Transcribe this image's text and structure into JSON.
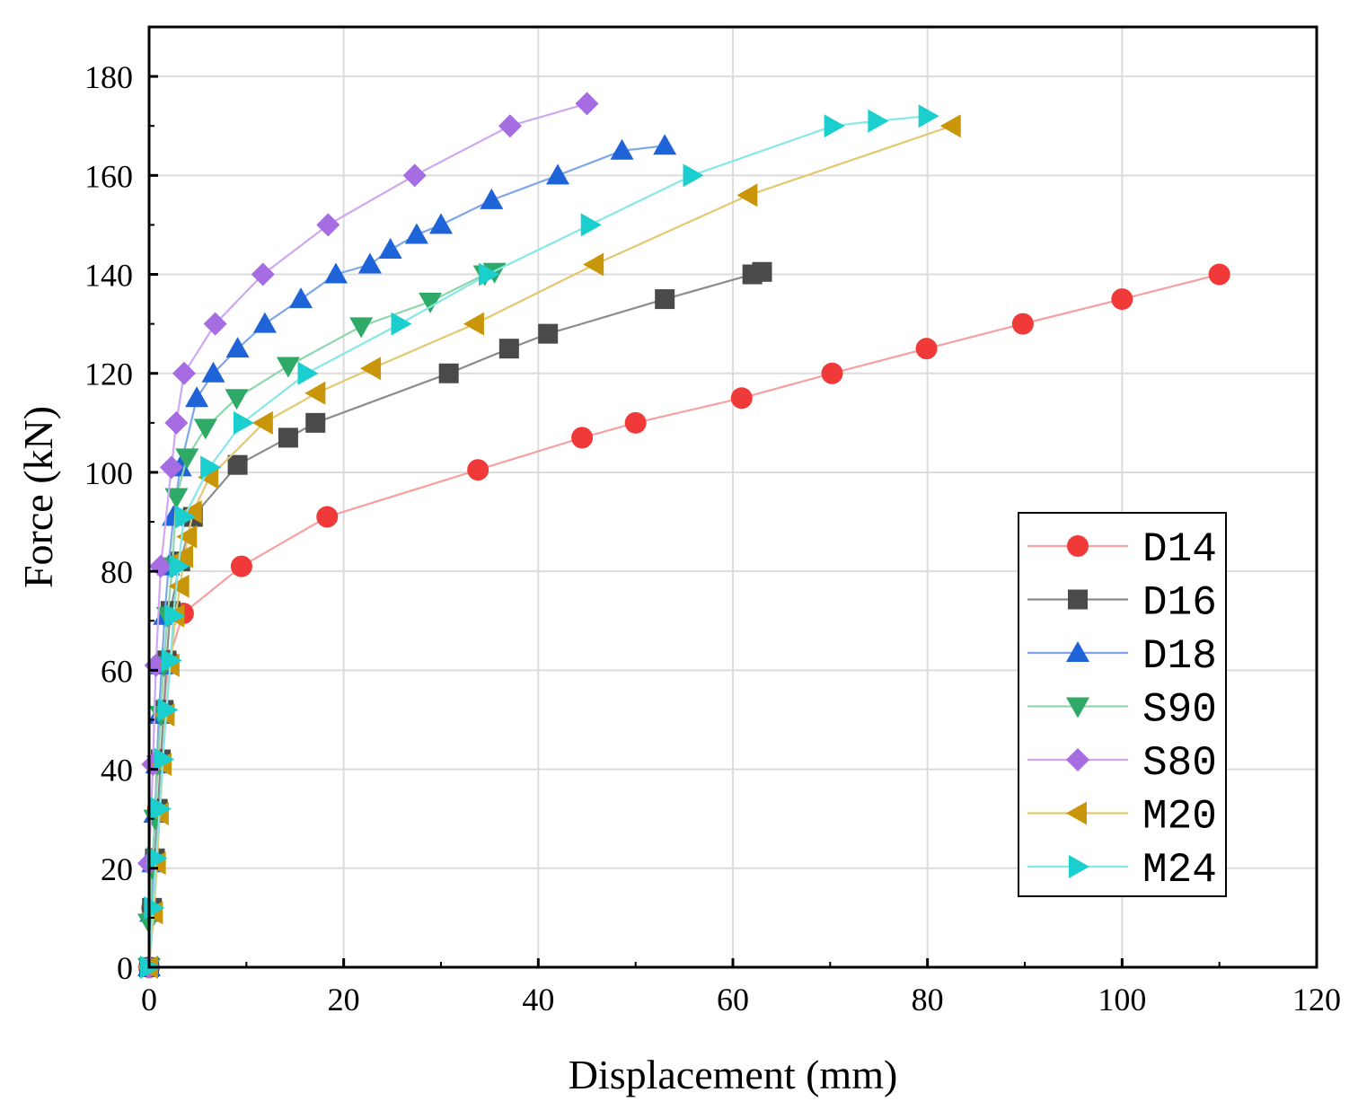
{
  "chart_data": {
    "type": "line",
    "xlabel": "Displacement (mm)",
    "ylabel": "Force (kN)",
    "xlim": [
      0,
      120
    ],
    "ylim": [
      0,
      190
    ],
    "xticks": [
      0,
      20,
      40,
      60,
      80,
      100,
      120
    ],
    "yticks": [
      0,
      20,
      40,
      60,
      80,
      100,
      120,
      140,
      160,
      180
    ],
    "grid": true,
    "legend_position": "bottom-right",
    "series": [
      {
        "name": "D14",
        "marker": "circle",
        "color": "#f03a3a",
        "line_color": "#f7a0a0",
        "points": [
          [
            0,
            0
          ],
          [
            0.3,
            12
          ],
          [
            0.6,
            22
          ],
          [
            0.9,
            32
          ],
          [
            1.2,
            42
          ],
          [
            1.5,
            52
          ],
          [
            2,
            62
          ],
          [
            3.5,
            71.5
          ],
          [
            9.5,
            81
          ],
          [
            18.3,
            91
          ],
          [
            33.8,
            100.5
          ],
          [
            44.5,
            107
          ],
          [
            50,
            110
          ],
          [
            60.9,
            115
          ],
          [
            70.2,
            120
          ],
          [
            79.9,
            125
          ],
          [
            89.8,
            130
          ],
          [
            100,
            135
          ],
          [
            110,
            140
          ]
        ]
      },
      {
        "name": "D16",
        "marker": "square",
        "color": "#4a4a4a",
        "line_color": "#8c8c8c",
        "points": [
          [
            0,
            0
          ],
          [
            0.3,
            12
          ],
          [
            0.6,
            22
          ],
          [
            0.9,
            32
          ],
          [
            1.2,
            42
          ],
          [
            1.5,
            52
          ],
          [
            1.8,
            62
          ],
          [
            2.2,
            72
          ],
          [
            3.2,
            82
          ],
          [
            4.5,
            91
          ],
          [
            9.1,
            101.5
          ],
          [
            14.3,
            107
          ],
          [
            17.1,
            110
          ],
          [
            30.8,
            120
          ],
          [
            37,
            125
          ],
          [
            41,
            128
          ],
          [
            53,
            135
          ],
          [
            62,
            140
          ],
          [
            63,
            140.5
          ]
        ]
      },
      {
        "name": "D18",
        "marker": "triangle-up",
        "color": "#1f63d9",
        "line_color": "#7ea6ea",
        "points": [
          [
            0,
            0
          ],
          [
            0.2,
            11
          ],
          [
            0.4,
            21
          ],
          [
            0.6,
            31
          ],
          [
            0.8,
            41
          ],
          [
            1,
            51
          ],
          [
            1.3,
            61
          ],
          [
            1.6,
            71
          ],
          [
            2,
            81
          ],
          [
            2.5,
            91
          ],
          [
            3.2,
            101
          ],
          [
            4.9,
            115
          ],
          [
            6.6,
            120
          ],
          [
            9.1,
            125
          ],
          [
            11.9,
            130
          ],
          [
            15.6,
            135
          ],
          [
            19.2,
            140
          ],
          [
            22.7,
            142
          ],
          [
            24.8,
            145
          ],
          [
            27.5,
            148
          ],
          [
            30,
            150
          ],
          [
            35.2,
            155
          ],
          [
            42,
            160
          ],
          [
            48.6,
            165
          ],
          [
            53,
            166
          ]
        ]
      },
      {
        "name": "S90",
        "marker": "triangle-down",
        "color": "#2eaa66",
        "line_color": "#8fd6ad",
        "points": [
          [
            0,
            0
          ],
          [
            0,
            9
          ],
          [
            0.3,
            20
          ],
          [
            0.6,
            30
          ],
          [
            0.9,
            41
          ],
          [
            1.2,
            51
          ],
          [
            1.5,
            61
          ],
          [
            1.9,
            71
          ],
          [
            2.4,
            81
          ],
          [
            2.8,
            95
          ],
          [
            3.9,
            103
          ],
          [
            5.8,
            109
          ],
          [
            9,
            115
          ],
          [
            14.3,
            121.5
          ],
          [
            21.8,
            129.5
          ],
          [
            28.9,
            134.5
          ],
          [
            34.5,
            140
          ],
          [
            35.5,
            140.5
          ]
        ]
      },
      {
        "name": "S80",
        "marker": "diamond",
        "color": "#a66de3",
        "line_color": "#cfa7f1",
        "points": [
          [
            0,
            0
          ],
          [
            0,
            21
          ],
          [
            0.4,
            41
          ],
          [
            0.7,
            61
          ],
          [
            1.2,
            81
          ],
          [
            2.3,
            101
          ],
          [
            2.8,
            110
          ],
          [
            3.6,
            120
          ],
          [
            6.8,
            130
          ],
          [
            11.7,
            140
          ],
          [
            18.4,
            150
          ],
          [
            27.3,
            160
          ],
          [
            37.1,
            170
          ],
          [
            45,
            174.5
          ]
        ]
      },
      {
        "name": "M20",
        "marker": "triangle-left",
        "color": "#c9960a",
        "line_color": "#e3c870",
        "points": [
          [
            0,
            0
          ],
          [
            0.5,
            11
          ],
          [
            0.8,
            21
          ],
          [
            1.1,
            31
          ],
          [
            1.4,
            41
          ],
          [
            1.7,
            51
          ],
          [
            2.2,
            61
          ],
          [
            2.7,
            71
          ],
          [
            3.2,
            77
          ],
          [
            3.6,
            83
          ],
          [
            4,
            87
          ],
          [
            4.5,
            92
          ],
          [
            6.2,
            99
          ],
          [
            11.8,
            110
          ],
          [
            17.2,
            116
          ],
          [
            22.9,
            121
          ],
          [
            33.5,
            130
          ],
          [
            45.8,
            142
          ],
          [
            61.6,
            156
          ],
          [
            82.5,
            170
          ]
        ]
      },
      {
        "name": "M24",
        "marker": "triangle-right",
        "color": "#1ccfcf",
        "line_color": "#86e7e7",
        "points": [
          [
            0,
            0
          ],
          [
            0.4,
            12
          ],
          [
            0.7,
            22
          ],
          [
            1.1,
            32
          ],
          [
            1.4,
            42
          ],
          [
            1.8,
            52
          ],
          [
            2.2,
            62
          ],
          [
            2.5,
            71
          ],
          [
            3,
            81
          ],
          [
            3.6,
            91
          ],
          [
            6.2,
            101
          ],
          [
            9.6,
            110
          ],
          [
            16.2,
            120
          ],
          [
            25.8,
            130
          ],
          [
            34.8,
            140
          ],
          [
            45.3,
            150
          ],
          [
            55.8,
            160
          ],
          [
            70.3,
            170
          ],
          [
            74.8,
            171
          ],
          [
            80,
            172
          ]
        ]
      }
    ]
  }
}
